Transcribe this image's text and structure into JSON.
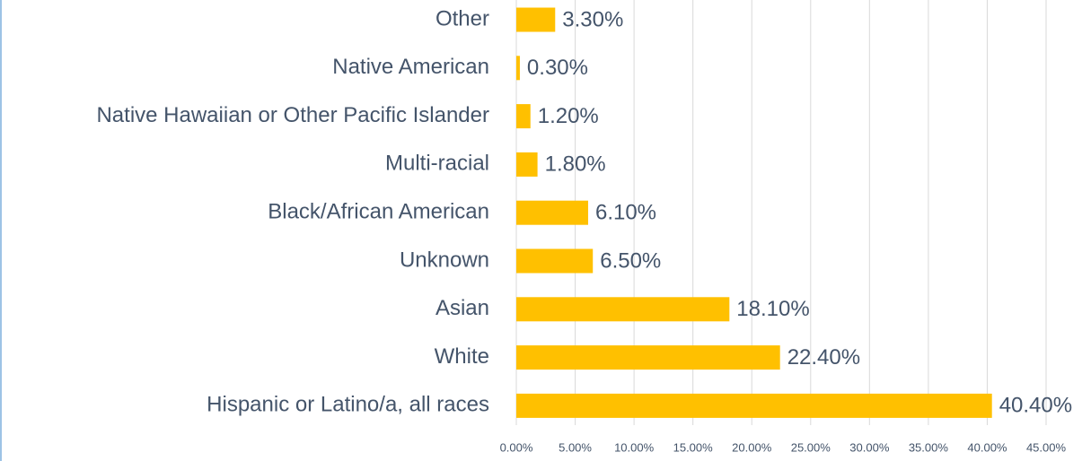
{
  "chart_data": {
    "type": "barh",
    "categories": [
      "Other",
      "Native American",
      "Native Hawaiian or Other Pacific Islander",
      "Multi-racial",
      "Black/African American",
      "Unknown",
      "Asian",
      "White",
      "Hispanic or Latino/a, all races"
    ],
    "values": [
      3.3,
      0.3,
      1.2,
      1.8,
      6.1,
      6.5,
      18.1,
      22.4,
      40.4
    ],
    "value_labels": [
      "3.30%",
      "0.30%",
      "1.20%",
      "1.80%",
      "6.10%",
      "6.50%",
      "18.10%",
      "22.40%",
      "40.40%"
    ],
    "color": "#ffc000",
    "xlim": [
      0,
      45
    ],
    "xticks": [
      {
        "value": 0,
        "label": "0.00%"
      },
      {
        "value": 5,
        "label": "5.00%"
      },
      {
        "value": 10,
        "label": "10.00%"
      },
      {
        "value": 15,
        "label": "15.00%"
      },
      {
        "value": 20,
        "label": "20.00%"
      },
      {
        "value": 25,
        "label": "25.00%"
      },
      {
        "value": 30,
        "label": "30.00%"
      },
      {
        "value": 35,
        "label": "35.00%"
      },
      {
        "value": 40,
        "label": "40.00%"
      },
      {
        "value": 45,
        "label": "45.00%"
      }
    ],
    "grid": true
  }
}
